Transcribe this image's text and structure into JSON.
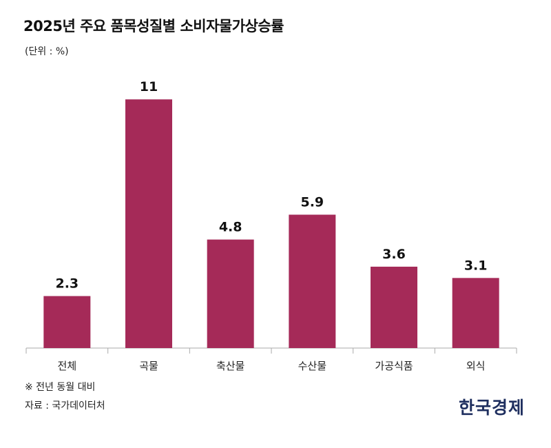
{
  "colors": {
    "bar": "#A52A58",
    "axis": "#aaaaaa",
    "logo": "#1f2f5f"
  },
  "title": "2025년 주요 품목성질별 소비자물가상승률",
  "unit": "(단위 : %)",
  "note": "※ 전년 동월 대비",
  "source": "자료 : 국가데이터처",
  "logo": "한국경제",
  "chart_data": {
    "type": "bar",
    "categories": [
      "전체",
      "곡물",
      "축산물",
      "수산물",
      "가공식품",
      "외식"
    ],
    "values": [
      2.3,
      11,
      4.8,
      5.9,
      3.6,
      3.1
    ],
    "value_labels": [
      "2.3",
      "11",
      "4.8",
      "5.9",
      "3.6",
      "3.1"
    ],
    "ylim": [
      0,
      11.5
    ],
    "grid": false,
    "legend": "none"
  }
}
